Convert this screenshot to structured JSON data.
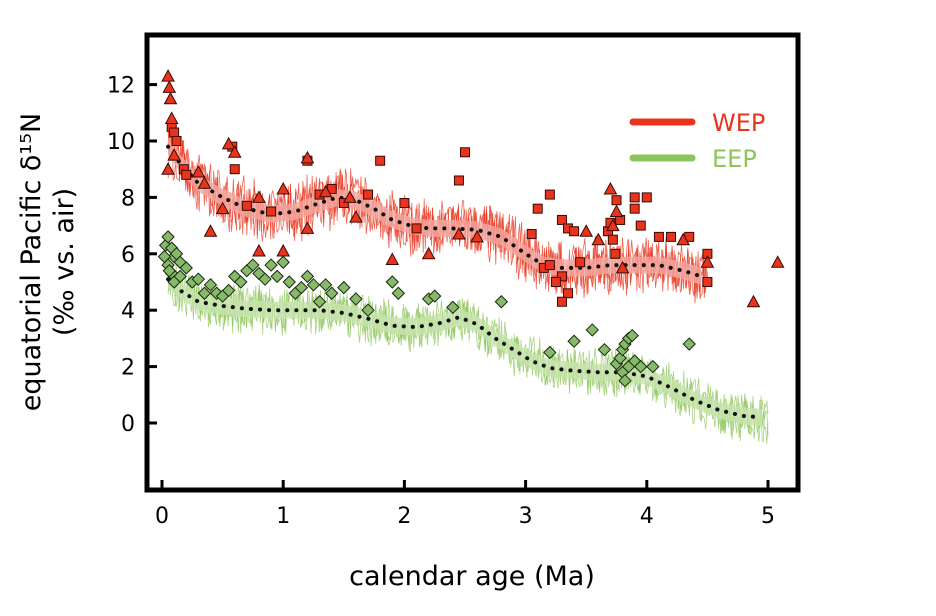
{
  "chart_data": {
    "type": "scatter",
    "title": "",
    "xlabel": "calendar age (Ma)",
    "ylabel_line1": "equatorial Pacific δ¹⁵N",
    "ylabel_line2": "(‰ vs. air)",
    "xlim": [
      -0.12,
      5.25
    ],
    "ylim": [
      -2.2,
      13.9
    ],
    "x_ticks": [
      0,
      1,
      2,
      3,
      4,
      5
    ],
    "x_tick_labels": [
      "0",
      "1",
      "2",
      "3",
      "4",
      "5"
    ],
    "y_ticks": [
      0,
      2,
      4,
      6,
      8,
      10,
      12
    ],
    "y_tick_labels": [
      "0",
      "2",
      "4",
      "6",
      "8",
      "10",
      "12"
    ],
    "grid": false,
    "legend_position": "top-right",
    "colors": {
      "WEP": "#e8341c",
      "WEP_band": "#f4a7a0",
      "EEP": "#8cc65a",
      "EEP_band": "#c7e4ad",
      "trend": "#111111",
      "EEP_marker": "#87b96a"
    },
    "series": [
      {
        "name": "WEP",
        "legend_label": "WEP",
        "smoothed_trend": {
          "x": [
            0.05,
            0.15,
            0.3,
            0.5,
            0.7,
            0.9,
            1.1,
            1.3,
            1.45,
            1.6,
            1.75,
            1.9,
            2.05,
            2.2,
            2.4,
            2.6,
            2.8,
            3.0,
            3.15,
            3.3,
            3.5,
            3.7,
            3.9,
            4.1,
            4.3,
            4.45
          ],
          "y": [
            9.8,
            9.2,
            8.5,
            8.0,
            7.6,
            7.4,
            7.5,
            7.8,
            8.0,
            7.9,
            7.6,
            7.2,
            7.0,
            6.9,
            6.9,
            6.85,
            6.6,
            6.0,
            5.6,
            5.5,
            5.5,
            5.6,
            5.6,
            5.6,
            5.4,
            5.2
          ]
        },
        "uncertainty_halfwidth": 0.3,
        "markers": {
          "triangles": [
            [
              0.05,
              12.3
            ],
            [
              0.06,
              11.9
            ],
            [
              0.07,
              11.5
            ],
            [
              0.08,
              10.8
            ],
            [
              0.05,
              9.0
            ],
            [
              0.1,
              9.5
            ],
            [
              0.3,
              8.9
            ],
            [
              0.35,
              8.5
            ],
            [
              0.55,
              9.9
            ],
            [
              0.6,
              9.6
            ],
            [
              1.0,
              8.3
            ],
            [
              1.2,
              9.4
            ],
            [
              1.35,
              8.2
            ],
            [
              1.55,
              8.0
            ],
            [
              1.6,
              7.3
            ],
            [
              1.9,
              5.8
            ],
            [
              0.5,
              7.6
            ],
            [
              0.8,
              8.0
            ],
            [
              0.4,
              6.8
            ],
            [
              2.45,
              6.7
            ],
            [
              2.6,
              6.6
            ],
            [
              2.2,
              6.0
            ],
            [
              3.7,
              8.3
            ],
            [
              3.75,
              7.5
            ],
            [
              3.72,
              7.0
            ],
            [
              3.6,
              6.5
            ],
            [
              4.3,
              6.5
            ],
            [
              4.5,
              5.7
            ],
            [
              4.88,
              4.3
            ],
            [
              5.08,
              5.7
            ],
            [
              0.8,
              6.1
            ],
            [
              1.0,
              6.1
            ],
            [
              1.2,
              6.9
            ],
            [
              3.5,
              6.8
            ],
            [
              3.8,
              5.5
            ]
          ],
          "squares": [
            [
              0.08,
              10.5
            ],
            [
              0.1,
              10.3
            ],
            [
              0.12,
              10.0
            ],
            [
              0.18,
              9.0
            ],
            [
              0.2,
              8.8
            ],
            [
              0.58,
              9.8
            ],
            [
              0.6,
              9.0
            ],
            [
              0.7,
              7.7
            ],
            [
              0.9,
              7.5
            ],
            [
              1.2,
              9.3
            ],
            [
              1.3,
              8.1
            ],
            [
              1.4,
              8.3
            ],
            [
              1.5,
              7.8
            ],
            [
              1.7,
              8.1
            ],
            [
              1.8,
              9.3
            ],
            [
              2.0,
              7.8
            ],
            [
              2.1,
              6.9
            ],
            [
              2.5,
              9.6
            ],
            [
              2.45,
              8.6
            ],
            [
              3.05,
              6.7
            ],
            [
              3.1,
              7.6
            ],
            [
              3.2,
              8.1
            ],
            [
              3.15,
              5.5
            ],
            [
              3.3,
              7.2
            ],
            [
              3.35,
              6.9
            ],
            [
              3.4,
              6.8
            ],
            [
              3.3,
              5.2
            ],
            [
              3.35,
              4.6
            ],
            [
              3.45,
              5.7
            ],
            [
              3.3,
              4.3
            ],
            [
              3.68,
              6.8
            ],
            [
              3.7,
              7.1
            ],
            [
              3.72,
              6.5
            ],
            [
              3.74,
              6.0
            ],
            [
              3.75,
              7.9
            ],
            [
              3.78,
              7.2
            ],
            [
              3.9,
              7.6
            ],
            [
              3.95,
              7.0
            ],
            [
              3.9,
              8.0
            ],
            [
              4.0,
              8.0
            ],
            [
              4.1,
              6.6
            ],
            [
              4.2,
              6.6
            ],
            [
              4.35,
              6.6
            ],
            [
              4.5,
              6.0
            ],
            [
              4.5,
              5.0
            ],
            [
              3.2,
              5.6
            ],
            [
              3.25,
              5.0
            ]
          ]
        }
      },
      {
        "name": "EEP",
        "legend_label": "EEP",
        "smoothed_trend": {
          "x": [
            0.05,
            0.15,
            0.3,
            0.5,
            0.7,
            0.9,
            1.1,
            1.3,
            1.5,
            1.7,
            1.9,
            2.1,
            2.3,
            2.45,
            2.6,
            2.75,
            2.9,
            3.05,
            3.2,
            3.4,
            3.6,
            3.8,
            4.0,
            4.2,
            4.4,
            4.6,
            4.8,
            4.95
          ],
          "y": [
            5.1,
            4.7,
            4.3,
            4.15,
            4.05,
            4.0,
            4.0,
            4.0,
            3.9,
            3.7,
            3.45,
            3.4,
            3.55,
            3.75,
            3.5,
            3.0,
            2.6,
            2.2,
            1.95,
            1.85,
            1.8,
            1.8,
            1.65,
            1.25,
            0.8,
            0.45,
            0.25,
            0.2
          ]
        },
        "uncertainty_halfwidth": 0.3,
        "markers": {
          "diamonds": [
            [
              0.03,
              6.3
            ],
            [
              0.05,
              6.6
            ],
            [
              0.08,
              6.2
            ],
            [
              0.1,
              5.9
            ],
            [
              0.12,
              6.0
            ],
            [
              0.15,
              5.7
            ],
            [
              0.05,
              5.6
            ],
            [
              0.08,
              5.3
            ],
            [
              0.1,
              5.0
            ],
            [
              0.15,
              5.2
            ],
            [
              0.2,
              5.5
            ],
            [
              0.25,
              5.0
            ],
            [
              0.3,
              5.1
            ],
            [
              0.35,
              4.6
            ],
            [
              0.4,
              4.9
            ],
            [
              0.45,
              4.6
            ],
            [
              0.5,
              4.5
            ],
            [
              0.55,
              4.7
            ],
            [
              0.6,
              5.2
            ],
            [
              0.65,
              5.0
            ],
            [
              0.7,
              5.4
            ],
            [
              0.75,
              5.6
            ],
            [
              0.8,
              5.3
            ],
            [
              0.85,
              5.1
            ],
            [
              0.9,
              5.6
            ],
            [
              0.95,
              5.2
            ],
            [
              1.0,
              5.7
            ],
            [
              1.05,
              5.0
            ],
            [
              1.1,
              4.6
            ],
            [
              1.15,
              4.8
            ],
            [
              1.2,
              5.2
            ],
            [
              1.25,
              4.9
            ],
            [
              1.3,
              4.3
            ],
            [
              1.35,
              4.9
            ],
            [
              1.4,
              4.6
            ],
            [
              1.5,
              4.8
            ],
            [
              1.6,
              4.4
            ],
            [
              1.7,
              4.0
            ],
            [
              1.9,
              5.0
            ],
            [
              1.95,
              4.6
            ],
            [
              2.2,
              4.4
            ],
            [
              2.25,
              4.5
            ],
            [
              2.4,
              4.1
            ],
            [
              2.8,
              4.3
            ],
            [
              3.2,
              2.5
            ],
            [
              3.4,
              2.9
            ],
            [
              3.55,
              3.3
            ],
            [
              3.65,
              2.6
            ],
            [
              3.75,
              2.1
            ],
            [
              3.78,
              2.3
            ],
            [
              3.8,
              2.6
            ],
            [
              3.82,
              2.8
            ],
            [
              3.85,
              3.0
            ],
            [
              3.88,
              3.1
            ],
            [
              3.8,
              1.8
            ],
            [
              3.82,
              1.5
            ],
            [
              3.85,
              2.0
            ],
            [
              3.9,
              2.2
            ],
            [
              3.95,
              2.0
            ],
            [
              4.05,
              2.0
            ],
            [
              4.35,
              2.8
            ],
            [
              0.02,
              5.9
            ],
            [
              0.06,
              5.4
            ]
          ]
        }
      }
    ]
  }
}
